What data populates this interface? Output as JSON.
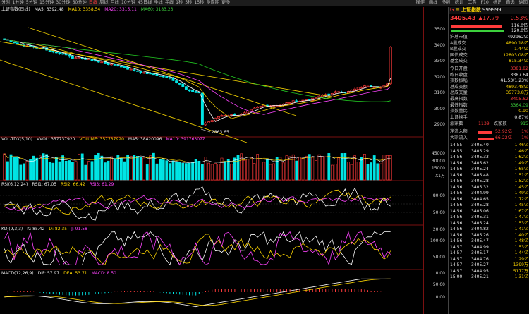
{
  "top_tabs": [
    "分时",
    "1分钟",
    "5分钟",
    "15分钟",
    "30分钟",
    "60分钟",
    "日线",
    "周线",
    "月线",
    "10分钟",
    "45日线",
    "季线",
    "年线",
    "1秒",
    "5秒",
    "15秒",
    "多周期",
    "更多"
  ],
  "top_active_tab": "日线",
  "top_right_menu": [
    "操作",
    "画线",
    "多股",
    "统计",
    "工具",
    "F10",
    "标记",
    "自选",
    "返回"
  ],
  "title": {
    "name": "上证指数(日线)",
    "ma5": "MA5: 3392.48",
    "ma10": "MA10: 3358.54",
    "ma20": "MA20: 3315.11",
    "ma60": "MA60: 3183.23"
  },
  "vol_title": {
    "name": "VOL-TDX(5,10)",
    "vvol": "VVOL: 357737920",
    "volume": "VOLUME: 357737920",
    "ma5": "MA5: 38420096",
    "ma10": "MA10: 39176307Z"
  },
  "rsi_title": {
    "name": "RSI(6,12,24)",
    "r1": "RSI1: 67.05",
    "r2": "RSI2: 66.42",
    "r3": "RSI3: 61.29"
  },
  "kdj_title": {
    "name": "KDJ(9,3,3)",
    "k": "K: 85.42",
    "d": "D: 82.35",
    "j": "J: 91.58"
  },
  "macd_title": {
    "name": "MACD(12,26,9)",
    "dif": "DIF: 57.97",
    "dea": "DEA: 53.71",
    "macd": "MACD: 8.50"
  },
  "low_annotation": "2863.65",
  "axis": {
    "price": [
      "3500",
      "3400",
      "3300",
      "3200",
      "3100",
      "3000",
      "2900"
    ],
    "vol": [
      "45000",
      "30000",
      "15000",
      "X1万"
    ],
    "rsi": [
      "80.00",
      "50.00",
      "20.00"
    ],
    "kdj": [
      "100.00",
      "50.00",
      "0.00"
    ],
    "macd": [
      "50.00",
      "0.00"
    ]
  },
  "panel": {
    "header_code": "999999",
    "header_name": "上证指数",
    "header_prefix": "G",
    "price": "3405.43",
    "change": "▲17.79",
    "pct": "0.53%",
    "bar1_val": "116.0亿",
    "bar2_val": "120.0亿",
    "stats": [
      {
        "label": "沪总市值",
        "value": "492962亿",
        "color": "white"
      },
      {
        "label": "A股成交",
        "value": "4890.18亿",
        "color": "yellow"
      },
      {
        "label": "B股成交",
        "value": "1.44亿",
        "color": "yellow"
      },
      {
        "label": "国债成交",
        "value": "12803.08亿",
        "color": "yellow"
      },
      {
        "label": "基金成交",
        "value": "815.34亿",
        "color": "yellow"
      },
      {
        "label": "今日开盘",
        "value": "3381.82",
        "color": "red"
      },
      {
        "label": "昨日收盘",
        "value": "3387.64",
        "color": "white"
      },
      {
        "label": "指数振幅",
        "value": "41.53/1.23%",
        "color": "white"
      },
      {
        "label": "总成交额",
        "value": "4893.48亿",
        "color": "yellow"
      },
      {
        "label": "总成交量",
        "value": "35773.8万",
        "color": "yellow"
      },
      {
        "label": "最高指数",
        "value": "3405.62",
        "color": "red"
      },
      {
        "label": "最低指数",
        "value": "3364.09",
        "color": "green"
      },
      {
        "label": "指数量比",
        "value": "0.90",
        "color": "yellow"
      },
      {
        "label": "上证换手",
        "value": "0.87%",
        "color": "white"
      }
    ],
    "up_label": "涨家数",
    "up_count": "1139",
    "down_label": "跌家数",
    "down_count": "915",
    "flow": [
      {
        "label": "净流入额",
        "value": "52.92亿",
        "pct": "1%"
      },
      {
        "label": "大宗流入",
        "value": "66.22亿",
        "pct": "1%"
      }
    ],
    "ticks": [
      {
        "t": "14:55",
        "p": "3405.40",
        "v": "1.46亿"
      },
      {
        "t": "14:55",
        "p": "3405.29",
        "v": "1.46亿"
      },
      {
        "t": "14:56",
        "p": "3405.33",
        "v": "1.62亿"
      },
      {
        "t": "14:56",
        "p": "3405.62",
        "v": "1.49亿"
      },
      {
        "t": "14:56",
        "p": "3405.24",
        "v": "1.65亿"
      },
      {
        "t": "14:56",
        "p": "3405.48",
        "v": "1.51亿"
      },
      {
        "t": "14:56",
        "p": "3405.28",
        "v": "1.52亿"
      },
      {
        "t": "14:56",
        "p": "3405.32",
        "v": "1.45亿"
      },
      {
        "t": "14:56",
        "p": "3404.99",
        "v": "1.49亿"
      },
      {
        "t": "14:56",
        "p": "3404.65",
        "v": "1.72亿"
      },
      {
        "t": "14:56",
        "p": "3405.28",
        "v": "1.45亿"
      },
      {
        "t": "14:56",
        "p": "3405.06",
        "v": "1.67亿"
      },
      {
        "t": "14:56",
        "p": "3405.31",
        "v": "1.47亿"
      },
      {
        "t": "14:56",
        "p": "3405.24",
        "v": "1.53亿"
      },
      {
        "t": "14:56",
        "p": "3404.82",
        "v": "1.41亿"
      },
      {
        "t": "14:56",
        "p": "3405.26",
        "v": "1.40亿"
      },
      {
        "t": "14:56",
        "p": "3405.47",
        "v": "1.48亿"
      },
      {
        "t": "14:57",
        "p": "3404.99",
        "v": "1.53亿"
      },
      {
        "t": "14:57",
        "p": "3405.17",
        "v": "1.44亿"
      },
      {
        "t": "14:57",
        "p": "3404.76",
        "v": "1.29亿"
      },
      {
        "t": "14:57",
        "p": "3405.27",
        "v": "1399万"
      },
      {
        "t": "14:57",
        "p": "3404.95",
        "v": "5177万"
      },
      {
        "t": "15:00",
        "p": "3405.21",
        "v": "1.31亿"
      }
    ]
  },
  "colors": {
    "up": "#ff3b3b",
    "down": "#00e5e5",
    "ma5": "#ffffff",
    "ma10": "#ffd700",
    "ma20": "#ff44ff",
    "ma60": "#22cc22",
    "channel": "#e8c800"
  }
}
